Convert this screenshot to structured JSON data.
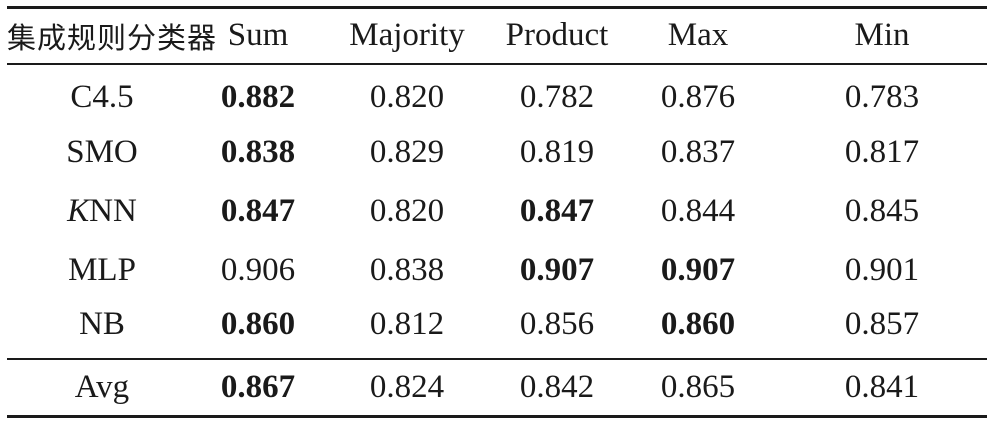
{
  "table": {
    "header": [
      "集成规则分类器",
      "Sum",
      "Majority",
      "Product",
      "Max",
      "Min"
    ],
    "rows": [
      {
        "name_prefix": "",
        "name_italic": "",
        "name_rest": "C4.5",
        "cells": [
          "0.882",
          "0.820",
          "0.782",
          "0.876",
          "0.783"
        ],
        "bold": [
          true,
          false,
          false,
          false,
          false
        ]
      },
      {
        "name_prefix": "",
        "name_italic": "",
        "name_rest": "SMO",
        "cells": [
          "0.838",
          "0.829",
          "0.819",
          "0.837",
          "0.817"
        ],
        "bold": [
          true,
          false,
          false,
          false,
          false
        ]
      },
      {
        "name_prefix": "",
        "name_italic": "K",
        "name_rest": "NN",
        "cells": [
          "0.847",
          "0.820",
          "0.847",
          "0.844",
          "0.845"
        ],
        "bold": [
          true,
          false,
          true,
          false,
          false
        ]
      },
      {
        "name_prefix": "",
        "name_italic": "",
        "name_rest": "MLP",
        "cells": [
          "0.906",
          "0.838",
          "0.907",
          "0.907",
          "0.901"
        ],
        "bold": [
          false,
          false,
          true,
          true,
          false
        ]
      },
      {
        "name_prefix": "",
        "name_italic": "",
        "name_rest": "NB",
        "cells": [
          "0.860",
          "0.812",
          "0.856",
          "0.860",
          "0.857"
        ],
        "bold": [
          true,
          false,
          false,
          true,
          false
        ]
      }
    ],
    "footer": {
      "name": "Avg",
      "cells": [
        "0.867",
        "0.824",
        "0.842",
        "0.865",
        "0.841"
      ],
      "bold": [
        true,
        false,
        false,
        false,
        false
      ]
    }
  }
}
